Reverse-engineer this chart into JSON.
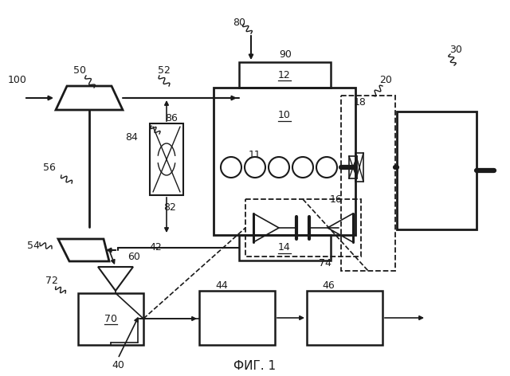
{
  "title": "ФИГ. 1",
  "bg_color": "#ffffff",
  "line_color": "#1a1a1a",
  "fig_width": 6.4,
  "fig_height": 4.72,
  "lw_main": 1.5,
  "lw_thin": 1.0,
  "fontsize": 9
}
